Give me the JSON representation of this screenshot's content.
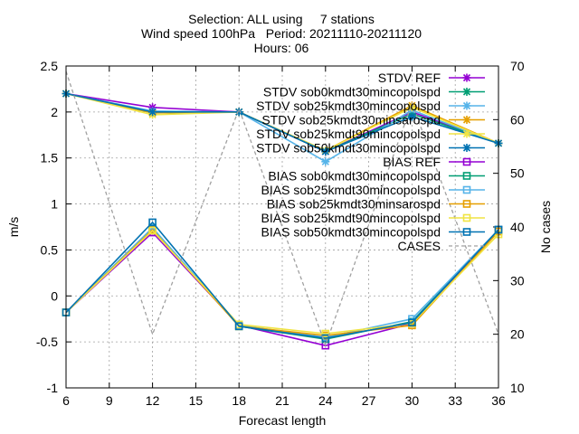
{
  "chart_data": {
    "type": "line",
    "title": [
      "Selection: ALL using     7 stations",
      "Wind speed 100hPa   Period: 20211110-20211120",
      "Hours: 06"
    ],
    "xlabel": "Forecast length",
    "ylabel": "m/s",
    "y2label": "No cases",
    "x": [
      6,
      12,
      18,
      24,
      30,
      36
    ],
    "xticks": [
      "6",
      "9",
      "12",
      "15",
      "18",
      "21",
      "24",
      "27",
      "30",
      "33",
      "36"
    ],
    "yticks": [
      "-1",
      "-0.5",
      "0",
      "0.5",
      "1",
      "1.5",
      "2",
      "2.5"
    ],
    "y2ticks": [
      "10",
      "20",
      "30",
      "40",
      "50",
      "60",
      "70"
    ],
    "xlim": [
      6,
      36
    ],
    "ylim": [
      -1,
      2.5
    ],
    "y2lim": [
      10,
      70
    ],
    "grid": true,
    "legend_position": "top-right",
    "series": [
      {
        "name": "STDV REF",
        "color": "#9400d3",
        "marker": "cross",
        "values": [
          2.2,
          2.05,
          2.0,
          1.57,
          2.0,
          1.66
        ]
      },
      {
        "name": "STDV sob0kmdt30mincopolspd",
        "color": "#009e73",
        "marker": "cross",
        "values": [
          2.2,
          1.99,
          2.0,
          1.57,
          1.98,
          1.66
        ]
      },
      {
        "name": "STDV sob25kmdt30mincopolspd",
        "color": "#56b4e9",
        "marker": "cross",
        "values": [
          2.2,
          2.01,
          2.0,
          1.46,
          2.02,
          1.66
        ]
      },
      {
        "name": "STDV sob25kmdt30minsarospd",
        "color": "#e69f00",
        "marker": "cross",
        "values": [
          2.2,
          1.99,
          2.0,
          1.58,
          2.07,
          1.66
        ]
      },
      {
        "name": "STDV sob25kmdt90mincopolspd",
        "color": "#f0e442",
        "marker": "cross",
        "values": [
          2.2,
          1.97,
          2.0,
          1.58,
          2.05,
          1.66
        ]
      },
      {
        "name": "STDV sob50kmdt30mincopolspd",
        "color": "#0072b2",
        "marker": "cross",
        "values": [
          2.2,
          2.0,
          2.0,
          1.57,
          1.95,
          1.66
        ]
      },
      {
        "name": "BIAS REF",
        "color": "#9400d3",
        "marker": "square",
        "values": [
          -0.18,
          0.69,
          -0.32,
          -0.54,
          -0.3,
          0.72
        ]
      },
      {
        "name": "BIAS sob0kmdt30mincopolspd",
        "color": "#009e73",
        "marker": "square",
        "values": [
          -0.18,
          0.74,
          -0.33,
          -0.47,
          -0.28,
          0.72
        ]
      },
      {
        "name": "BIAS sob25kmdt30mincopolspd",
        "color": "#56b4e9",
        "marker": "square",
        "values": [
          -0.18,
          0.74,
          -0.32,
          -0.45,
          -0.25,
          0.72
        ]
      },
      {
        "name": "BIAS sob25kmdt30minsarospd",
        "color": "#e69f00",
        "marker": "square",
        "values": [
          -0.18,
          0.72,
          -0.33,
          -0.43,
          -0.32,
          0.7
        ]
      },
      {
        "name": "BIAS sob25kmdt90mincopolspd",
        "color": "#f0e442",
        "marker": "square",
        "values": [
          -0.18,
          0.71,
          -0.31,
          -0.41,
          -0.3,
          0.67
        ]
      },
      {
        "name": "BIAS sob50kmdt30mincopolspd",
        "color": "#0072b2",
        "marker": "square",
        "values": [
          -0.18,
          0.8,
          -0.33,
          -0.46,
          -0.29,
          0.72
        ]
      },
      {
        "name": "CASES",
        "color": "#a0a0a0",
        "dashed": true,
        "axis": "y2",
        "values": [
          69,
          20,
          62,
          18,
          63,
          20
        ]
      }
    ]
  }
}
